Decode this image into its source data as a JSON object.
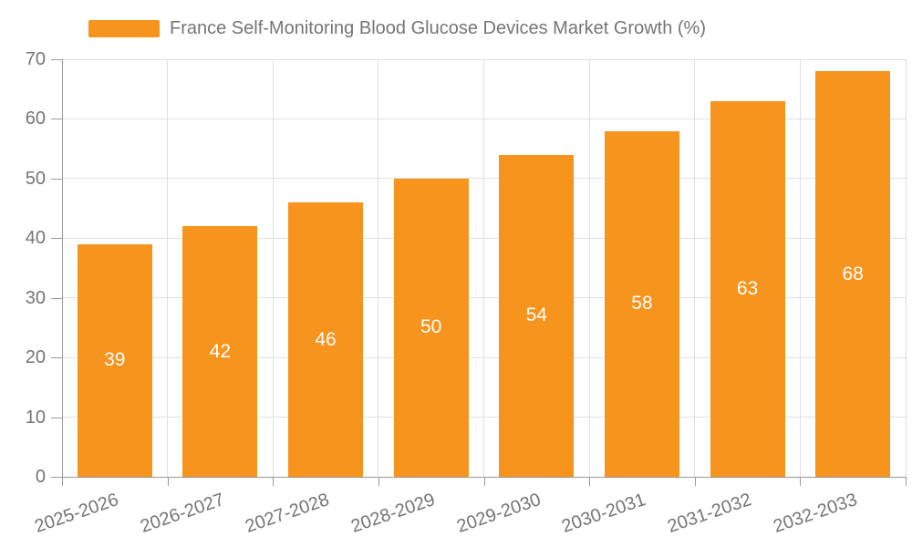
{
  "legend": {
    "label": "France Self-Monitoring Blood Glucose Devices Market Growth (%)"
  },
  "chart_data": {
    "type": "bar",
    "title": "France Self-Monitoring Blood Glucose Devices Market Growth (%)",
    "categories": [
      "2025-2026",
      "2026-2027",
      "2027-2028",
      "2028-2029",
      "2029-2030",
      "2030-2031",
      "2031-2032",
      "2032-2033"
    ],
    "values": [
      39,
      42,
      46,
      50,
      54,
      58,
      63,
      68
    ],
    "xlabel": "",
    "ylabel": "",
    "ylim": [
      0,
      70
    ],
    "yticks": [
      0,
      10,
      20,
      30,
      40,
      50,
      60,
      70
    ],
    "grid": true,
    "legend_position": "top-left",
    "value_labels_inside_bars": true,
    "colors": {
      "bar": "#F7941E",
      "value_label": "#FFFFFF",
      "axis_text": "#757575",
      "axis_line": "#999999",
      "grid_line": "#E0E0E0",
      "background": "#FFFFFF"
    }
  }
}
